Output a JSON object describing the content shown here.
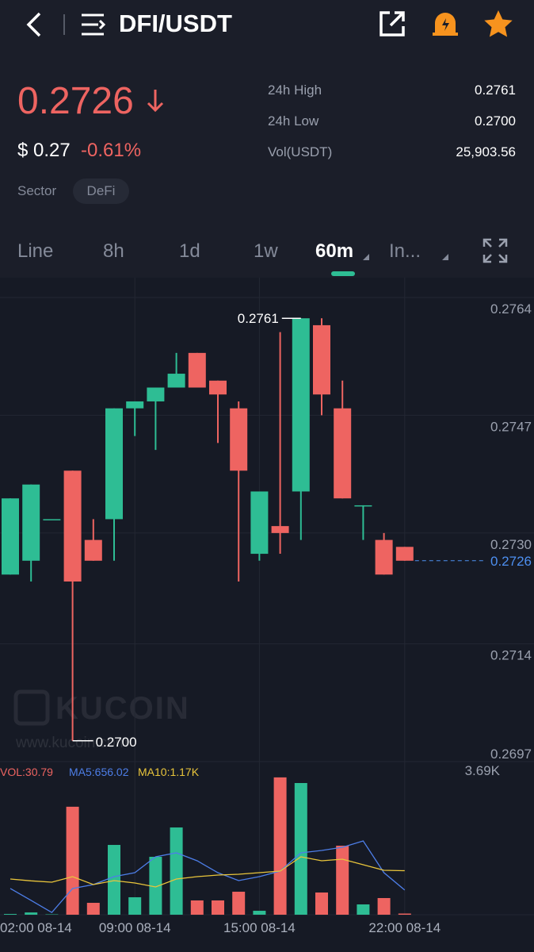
{
  "header": {
    "title": "DFI/USDT"
  },
  "ticker": {
    "price": "0.2726",
    "usd_symbol": "$",
    "usd_value": "0.27",
    "change": "-0.61%",
    "sector_label": "Sector",
    "sector": "DeFi",
    "stats": [
      {
        "label": "24h High",
        "value": "0.2761"
      },
      {
        "label": "24h Low",
        "value": "0.2700"
      },
      {
        "label": "Vol(USDT)",
        "value": "25,903.56"
      }
    ]
  },
  "tabs": [
    "Line",
    "8h",
    "1d",
    "1w",
    "60m",
    "In..."
  ],
  "active_tab": 4,
  "chart_data": {
    "type": "candlestick",
    "categories": [
      null,
      null,
      null,
      null,
      null,
      null,
      null,
      null,
      null,
      null,
      null,
      null,
      null,
      null,
      null,
      null,
      null,
      null,
      null,
      null
    ],
    "open": [
      0.2724,
      0.2726,
      0.2732,
      0.2739,
      0.2729,
      0.2732,
      0.2748,
      0.2749,
      0.2751,
      0.2756,
      0.2752,
      0.2748,
      0.2727,
      0.2731,
      0.2736,
      0.276,
      0.2748,
      0.2734,
      0.2729,
      0.2728
    ],
    "high": [
      0.2735,
      0.2737,
      0.2732,
      0.2739,
      0.2732,
      0.2748,
      0.2749,
      0.2751,
      0.2756,
      0.2756,
      0.2752,
      0.2749,
      0.2736,
      0.2759,
      0.2761,
      0.2761,
      0.2752,
      0.2734,
      0.273,
      0.2728
    ],
    "low": [
      0.2724,
      0.2723,
      0.2732,
      0.27,
      0.2726,
      0.2726,
      0.2744,
      0.2742,
      0.2751,
      0.2751,
      0.2743,
      0.2723,
      0.2726,
      0.2727,
      0.2729,
      0.2747,
      0.2735,
      0.2729,
      0.2724,
      0.2726
    ],
    "close": [
      0.2735,
      0.2737,
      0.2732,
      0.2723,
      0.2726,
      0.2748,
      0.2749,
      0.2751,
      0.2753,
      0.2751,
      0.275,
      0.2739,
      0.2736,
      0.273,
      0.2761,
      0.275,
      0.2735,
      0.2734,
      0.2724,
      0.2726
    ],
    "colors": {
      "up": "#2ebd94",
      "down": "#ee6461",
      "last": "#4d8ff0"
    },
    "ylim": [
      0.2697,
      0.2764
    ],
    "yticks": [
      0.2764,
      0.2747,
      {
        "value": 0.273,
        "label": "0.2730"
      },
      0.2714,
      0.2697
    ],
    "xticks": [
      {
        "value": -1,
        "label": "02:00 08-14"
      },
      {
        "value": 6,
        "label": "09:00 08-14"
      },
      {
        "value": 12,
        "label": "15:00 08-14"
      },
      {
        "value": 19,
        "label": "22:00 08-14"
      }
    ],
    "grid": true,
    "last_price": 0.2726,
    "high_annotation": 0.2761,
    "low_annotation": {
      "value": 0.27,
      "label": "0.2700"
    },
    "watermark": {
      "logo": "KUCOIN",
      "url": "www.kucoin.com"
    },
    "volume": {
      "legend": "VOL:30.79",
      "values": [
        20,
        60,
        10,
        2870,
        316,
        1855,
        464,
        1539,
        2319,
        380,
        380,
        611,
        105,
        3650,
        3500,
        590,
        1834,
        274,
        443,
        30.79
      ],
      "ylim": [
        0,
        3690
      ],
      "yticks": [
        {
          "value": 3690,
          "label": "3.69K"
        }
      ],
      "ma": [
        {
          "name": "MA5:656.02",
          "color": "#4d7ee8",
          "values": [
            696,
            380,
            60,
            696,
            801,
            1012,
            1117,
            1539,
            1645,
            1434,
            1117,
            907,
            1012,
            1160,
            1645,
            1708,
            1792,
            1961,
            1117,
            656.02
          ]
        },
        {
          "name": "MA10:1.17K",
          "color": "#e9c53b",
          "values": [
            949,
            900,
            864,
            1012,
            801,
            907,
            843,
            738,
            949,
            1012,
            1054,
            1075,
            1117,
            1160,
            1539,
            1434,
            1476,
            1328,
            1181,
            1170
          ]
        }
      ]
    }
  }
}
